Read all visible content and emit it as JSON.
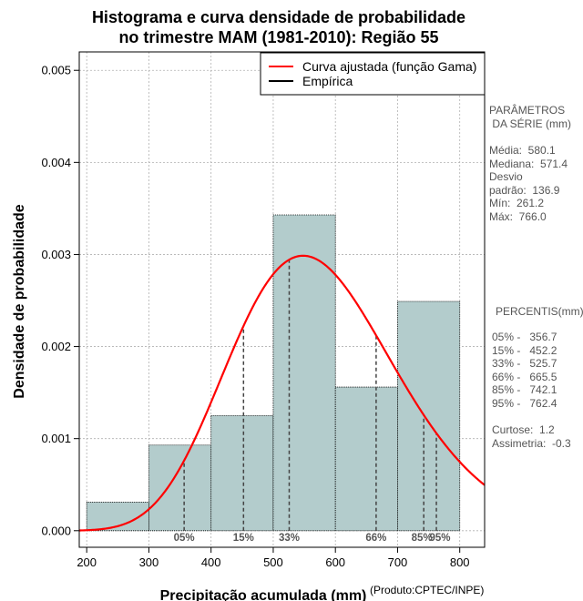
{
  "chart_data": {
    "type": "bar",
    "title_line1": "Histograma e curva densidade de probabilidade",
    "title_line2": "no trimestre MAM (1981-2010): Região 55",
    "xlabel": "Precipitação acumulada (mm)",
    "ylabel": "Densidade de probabilidade",
    "credit": "(Produto:CPTEC/INPE)",
    "xlim": [
      188,
      840
    ],
    "ylim": [
      -0.00018,
      0.0052
    ],
    "xticks": [
      200,
      300,
      400,
      500,
      600,
      700,
      800
    ],
    "xtick_labels": [
      "200",
      "300",
      "400",
      "500",
      "600",
      "700",
      "800"
    ],
    "yticks": [
      0.0,
      0.001,
      0.002,
      0.003,
      0.004,
      0.005
    ],
    "ytick_labels": [
      "0.000",
      "0.001",
      "0.002",
      "0.003",
      "0.004",
      "0.005"
    ],
    "grid": true,
    "bins": [
      {
        "from": 200,
        "to": 300,
        "density": 0.00031
      },
      {
        "from": 300,
        "to": 400,
        "density": 0.00093
      },
      {
        "from": 400,
        "to": 500,
        "density": 0.00125
      },
      {
        "from": 500,
        "to": 600,
        "density": 0.00343
      },
      {
        "from": 600,
        "to": 700,
        "density": 0.00156
      },
      {
        "from": 700,
        "to": 800,
        "density": 0.00249
      }
    ],
    "gamma_fit": {
      "shape": 18.0,
      "scale": 32.24
    },
    "percentile_lines": [
      {
        "label": "05%",
        "value": 356.7
      },
      {
        "label": "15%",
        "value": 452.2
      },
      {
        "label": "33%",
        "value": 525.7
      },
      {
        "label": "66%",
        "value": 665.5
      },
      {
        "label": "85%",
        "value": 742.1
      },
      {
        "label": "95%",
        "value": 762.4
      }
    ],
    "legend": [
      {
        "label": "Curva ajustada (função Gama)",
        "color": "#ff0000"
      },
      {
        "label": "Empírica",
        "color": "#000000"
      }
    ],
    "legend_position": "top-right",
    "colors": {
      "bar_fill": "#b3cccc",
      "curve": "#ff0000",
      "grid": "#b0b0b0",
      "percentile": "#444444"
    }
  },
  "sidebar": {
    "params_title": "PARÂMETROS\n DA SÉRIE (mm)",
    "params_body": "Média:  580.1\nMediana:  571.4\nDesvio\npadrão:  136.9\nMín:  261.2\nMáx:  766.0",
    "percentis_title": "PERCENTIS(mm)",
    "percentis_body": "05% -   356.7\n15% -   452.2\n33% -   525.7\n66% -   665.5\n85% -   742.1\n95% -   762.4",
    "stats_body": "Curtose:  1.2\nAssimetria:  -0.3"
  }
}
